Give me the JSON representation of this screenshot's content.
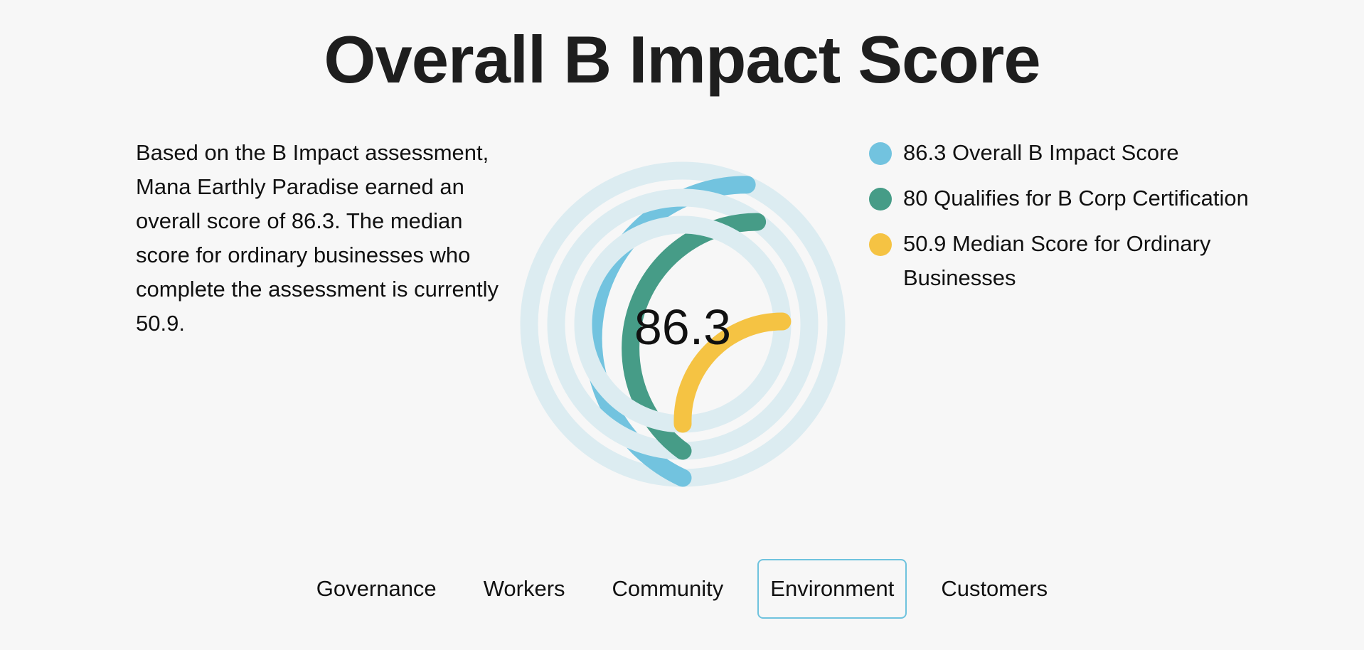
{
  "title": "Overall B Impact Score",
  "description": "Based on the B Impact assessment, Mana Earthly Paradise earned an overall score of 86.3. The median score for ordinary businesses who complete the assessment is currently 50.9.",
  "chart_data": {
    "type": "radial-bar",
    "center_label": "86.3",
    "max": 200,
    "track_color": "#dcecf1",
    "series": [
      {
        "name": "Overall B Impact Score",
        "value": 86.3,
        "label": "86.3 Overall B Impact Score",
        "color": "#72c3df"
      },
      {
        "name": "Qualifies for B Corp Certification",
        "value": 80,
        "label": "80 Qualifies for B Corp Certification",
        "color": "#469c87"
      },
      {
        "name": "Median Score for Ordinary Businesses",
        "value": 50.9,
        "label": "50.9 Median Score for Ordinary Businesses",
        "color": "#f5c343"
      }
    ]
  },
  "tabs": [
    {
      "label": "Governance",
      "active": false
    },
    {
      "label": "Workers",
      "active": false
    },
    {
      "label": "Community",
      "active": false
    },
    {
      "label": "Environment",
      "active": true
    },
    {
      "label": "Customers",
      "active": false
    }
  ]
}
